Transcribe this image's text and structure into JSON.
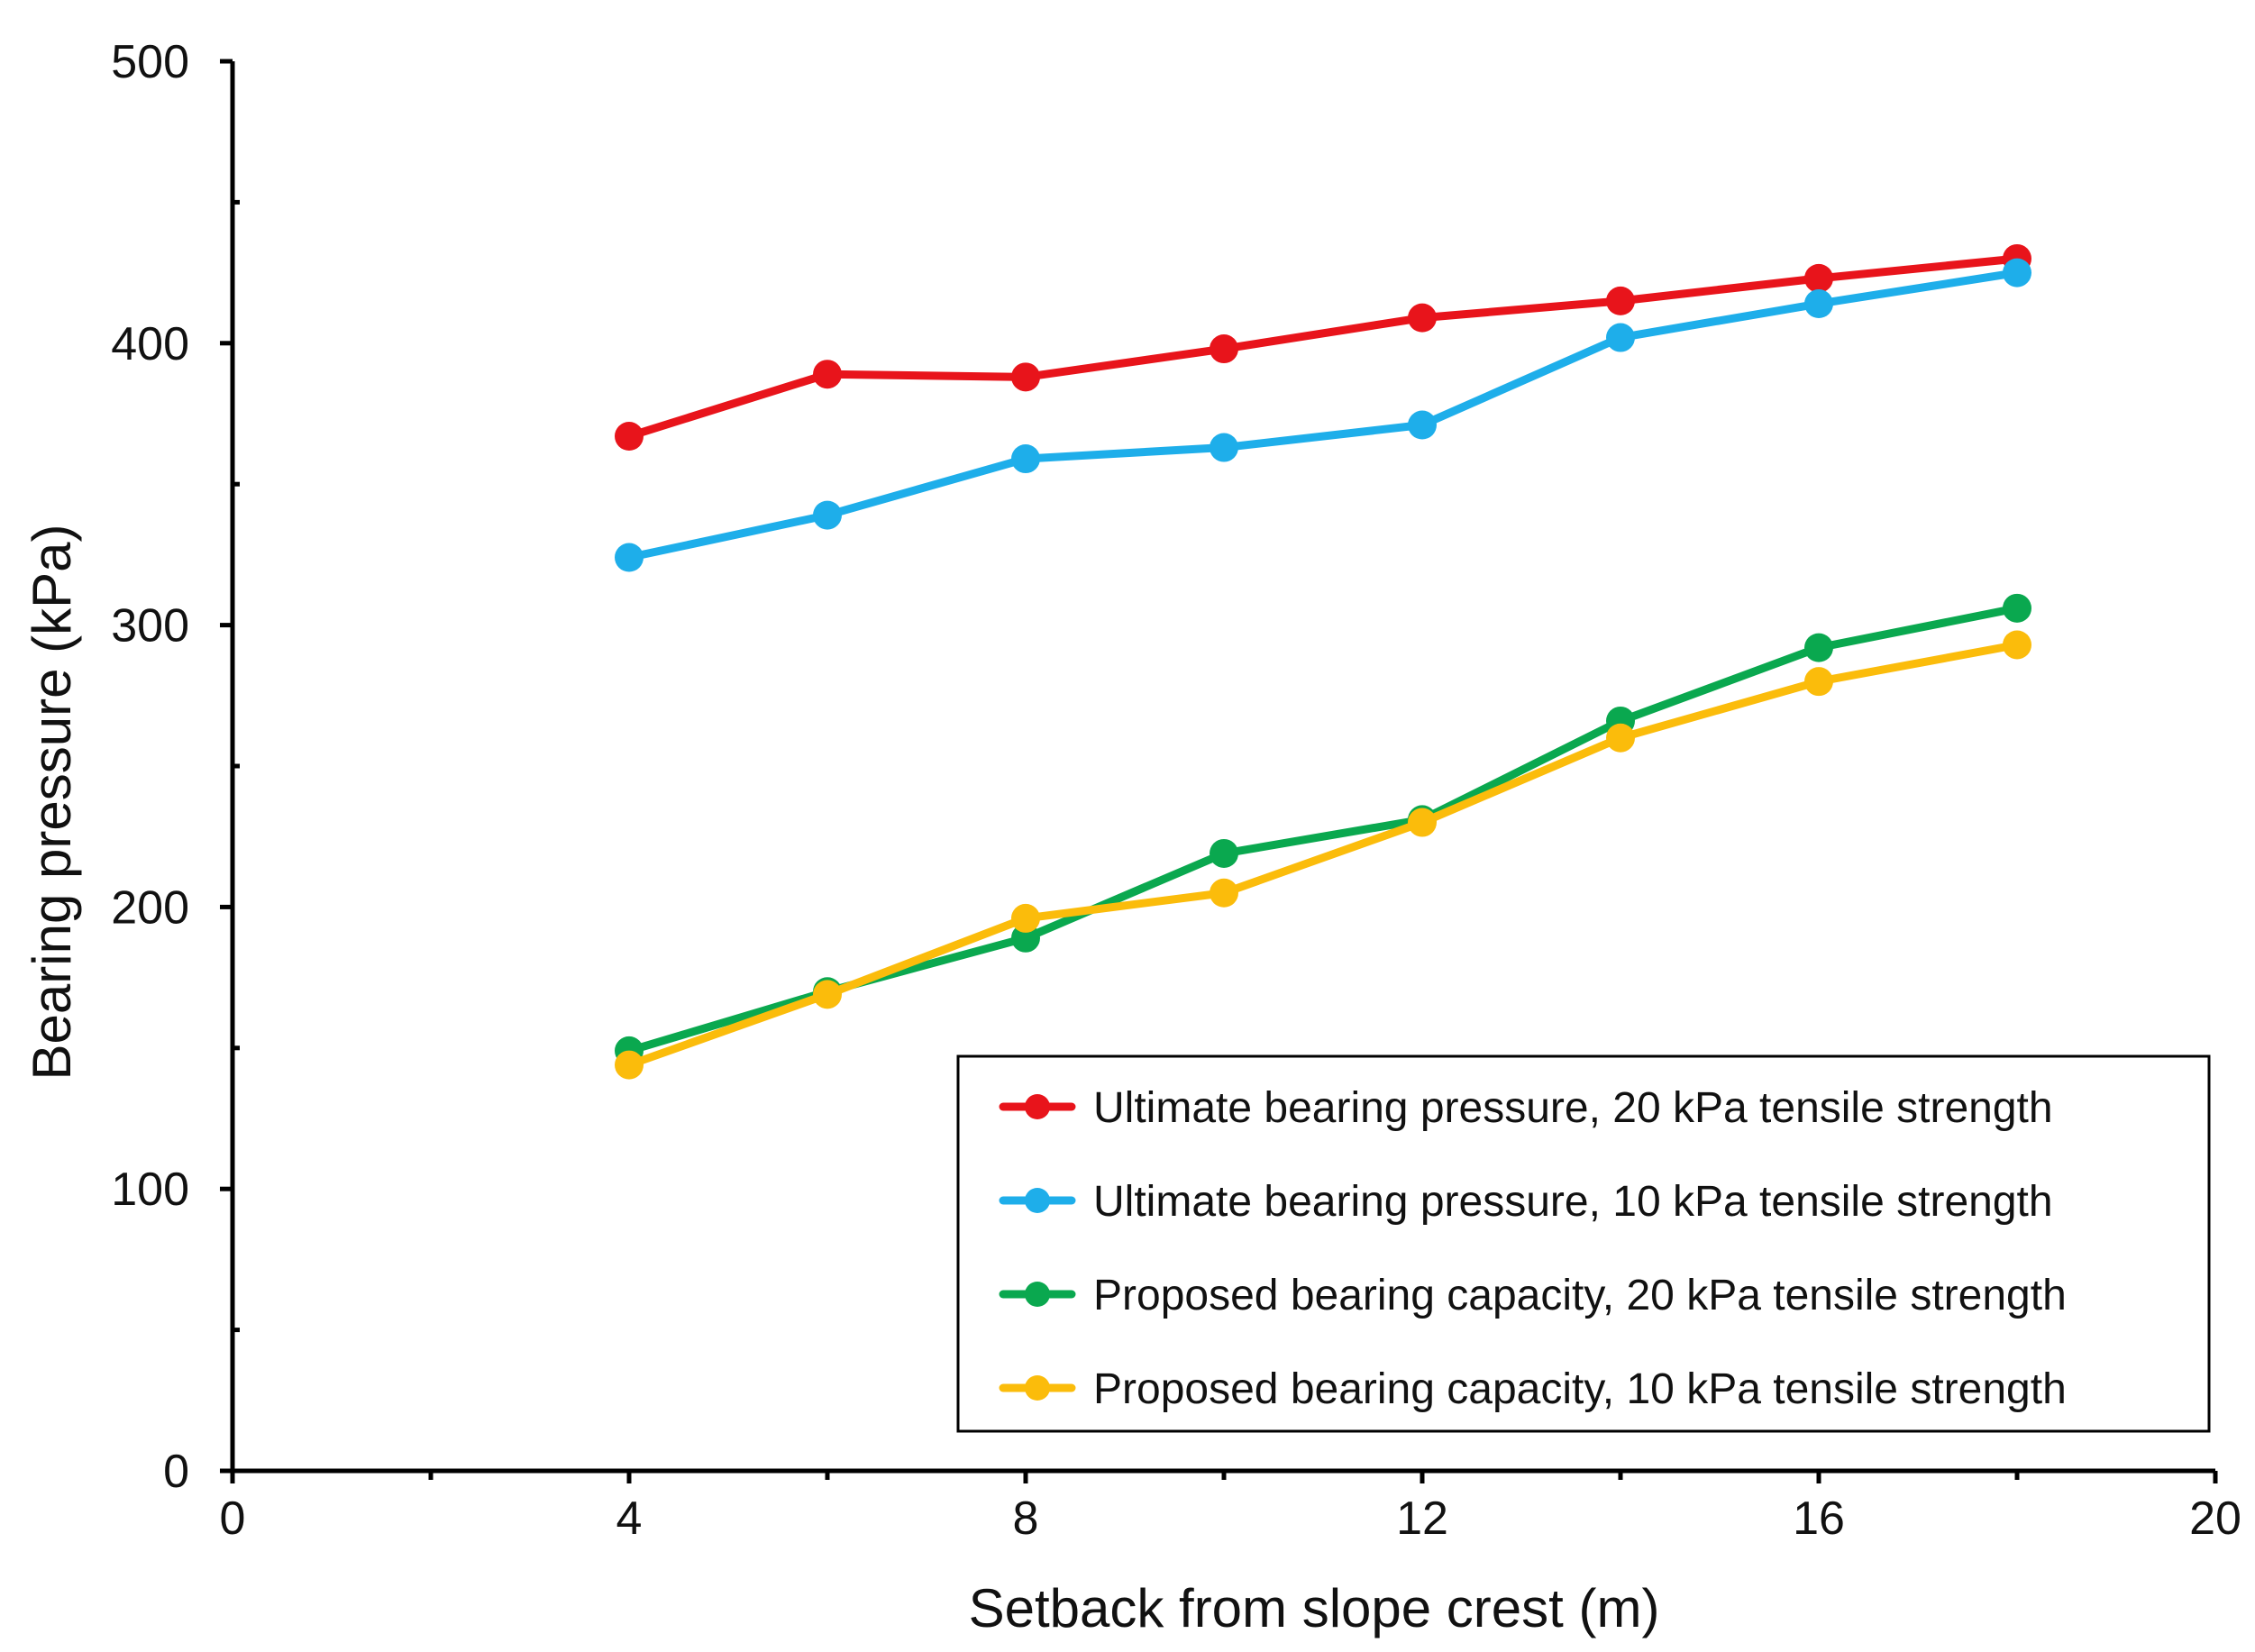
{
  "chart_data": {
    "type": "line",
    "title": "",
    "xlabel": "Setback from slope crest (m)",
    "ylabel": "Bearing pressure (kPa)",
    "xlim": [
      0,
      20
    ],
    "ylim": [
      0,
      500
    ],
    "x_major_ticks": [
      0,
      4,
      8,
      12,
      16,
      20
    ],
    "x_major_tick_labels": [
      "0",
      "4",
      "8",
      "12",
      "16",
      "20"
    ],
    "x_minor_ticks": [
      2,
      6,
      10,
      14,
      18
    ],
    "y_major_ticks": [
      0,
      100,
      200,
      300,
      400,
      500
    ],
    "y_major_tick_labels": [
      "0",
      "100",
      "200",
      "300",
      "400",
      "500"
    ],
    "y_minor_ticks": [
      50,
      150,
      250,
      350,
      450
    ],
    "grid": false,
    "legend_position": "bottom-right",
    "x": [
      4,
      6,
      8,
      10,
      12,
      14,
      16,
      18
    ],
    "series": [
      {
        "name": "Ultimate bearing pressure, 20 kPa tensile strength",
        "color": "#e8141b",
        "values": [
          367,
          389,
          388,
          398,
          409,
          415,
          423,
          430
        ]
      },
      {
        "name": "Ultimate bearing pressure, 10 kPa tensile strength",
        "color": "#1eaeea",
        "values": [
          324,
          339,
          359,
          363,
          371,
          402,
          414,
          425
        ]
      },
      {
        "name": "Proposed bearing capacity, 20 kPa tensile strength",
        "color": "#0aa84f",
        "values": [
          149,
          170,
          189,
          219,
          231,
          266,
          292,
          306
        ]
      },
      {
        "name": "Proposed bearing capacity, 10 kPa tensile strength",
        "color": "#fbbc0b",
        "values": [
          144,
          169,
          196,
          205,
          230,
          260,
          280,
          293
        ]
      }
    ]
  }
}
